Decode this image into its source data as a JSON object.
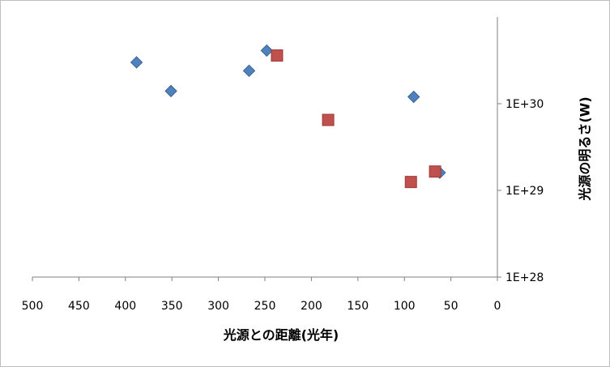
{
  "chart_data": {
    "type": "scatter",
    "xlabel": "光源との距離(光年)",
    "ylabel": "光源の明るさ(W)",
    "xlim": [
      500,
      0
    ],
    "x_reversed": true,
    "x_ticks": [
      500,
      450,
      400,
      350,
      300,
      250,
      200,
      150,
      100,
      50,
      0
    ],
    "x_tick_labels": [
      "500",
      "450",
      "400",
      "350",
      "300",
      "250",
      "200",
      "150",
      "100",
      "50",
      "0"
    ],
    "y_scale": "log",
    "ylim": [
      1e+28,
      1e+31
    ],
    "y_ticks": [
      1e+28,
      1e+29,
      1e+30
    ],
    "y_tick_labels": [
      "1E+28",
      "1E+29",
      "1E+30"
    ],
    "y_axis_position": "right",
    "grid": false,
    "legend": "none",
    "series": [
      {
        "marker": "diamond",
        "color": "#4f81bd",
        "points": [
          {
            "x": 388,
            "y": 3e+30
          },
          {
            "x": 351,
            "y": 1.4e+30
          },
          {
            "x": 267,
            "y": 2.4e+30
          },
          {
            "x": 248,
            "y": 4.1e+30
          },
          {
            "x": 90,
            "y": 1.2e+30
          },
          {
            "x": 62,
            "y": 1.6e+29
          }
        ]
      },
      {
        "marker": "square",
        "color": "#c0504d",
        "points": [
          {
            "x": 237,
            "y": 3.6e+30
          },
          {
            "x": 182,
            "y": 6.5e+29
          },
          {
            "x": 93,
            "y": 1.25e+29
          },
          {
            "x": 67,
            "y": 1.65e+29
          }
        ]
      }
    ]
  }
}
